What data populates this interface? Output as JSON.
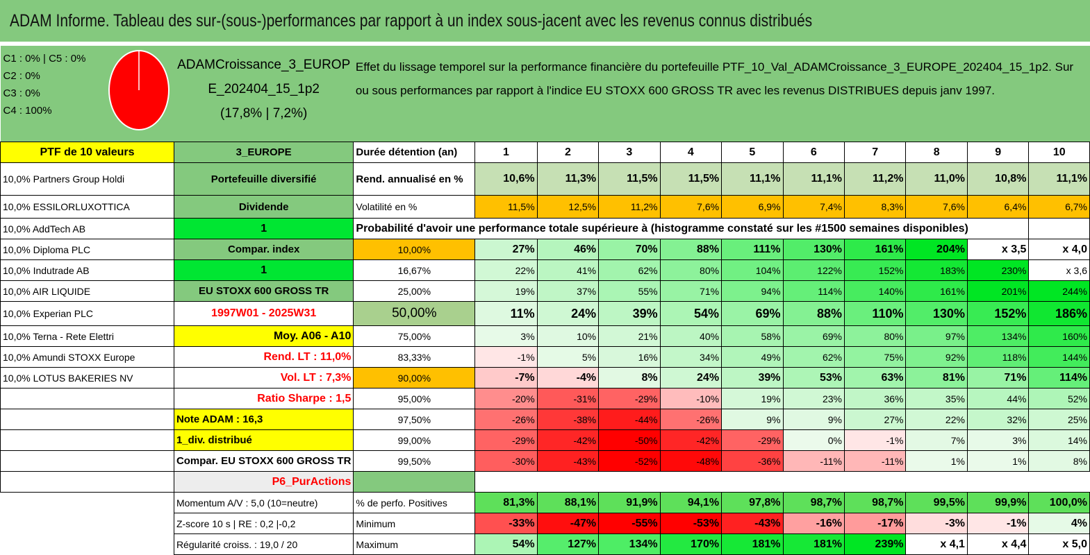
{
  "title": "ADAM Informe. Tableau des sur-(sous-)performances par rapport à un index sous-jacent avec les revenus connus distribués",
  "composition": [
    "C1 : 0% | C5 : 0%",
    "C2 : 0%",
    "C3 : 0%",
    "C4 : 100%"
  ],
  "pie_share": {
    "C4": 100
  },
  "fund": {
    "name": "ADAMCroissance_3_EUROPE_202404_15_1p2",
    "stats": "(17,8% | 7,2%)"
  },
  "effect_text": "Effet du lissage temporel sur la performance financière du portefeuille PTF_10_Val_ADAMCroissance_3_EUROPE_202404_15_1p2. Sur ou sous performances par rapport à l'indice EU STOXX 600 GROSS TR avec les revenus DISTRIBUES depuis janv 1997.",
  "ptf_label": "PTF de 10 valeurs",
  "holdings": [
    "10,0% Partners Group Holdi",
    "10,0% ESSILORLUXOTTICA",
    "10,0% AddTech AB",
    "10,0% Diploma PLC",
    "10,0% Indutrade AB",
    "10,0% AIR LIQUIDE",
    "10,0% Experian PLC",
    "10,0% Terna - Rete Elettri",
    "10,0% Amundi STOXX Europe",
    "10,0% LOTUS BAKERIES NV"
  ],
  "side": {
    "region": "3_EUROPE",
    "type": "Portefeuille diversifié",
    "dividend": "Dividende",
    "one_a": "1",
    "compar": "Compar. index",
    "one_b": "1",
    "index": "EU STOXX 600 GROSS TR",
    "period": "1997W01 - 2025W31",
    "moy": "Moy. A06 - A10",
    "rend": "Rend. LT : 11,0%",
    "vol": "Vol. LT : 7,3%",
    "sharpe": "Ratio Sharpe : 1,5",
    "note": "Note ADAM : 16,3",
    "div": "1_div. distribué",
    "compar2": "Compar. EU STOXX 600 GROSS TR",
    "pur": "P6_PurActions",
    "momentum": "Momentum A/V : 5,0 (10=neutre)",
    "zscore": "Z-score 10 s | RE : 0,2 |-0,2",
    "regularite": "Régularité croiss. : 19,0 / 20"
  },
  "labels": {
    "duree": "Durée détention (an)",
    "rend": "Rend. annualisé en %",
    "vol": "Volatilité en %",
    "prob": "Probabilité d'avoir une performance totale supérieure à (histogramme constaté sur les #1500 semaines disponibles)",
    "pos": "% de perfo. Positives",
    "min": "Minimum",
    "max": "Maximum"
  },
  "years": [
    "1",
    "2",
    "3",
    "4",
    "5",
    "6",
    "7",
    "8",
    "9",
    "10"
  ],
  "rend": [
    "10,6%",
    "11,3%",
    "11,5%",
    "11,5%",
    "11,1%",
    "11,1%",
    "11,2%",
    "11,0%",
    "10,8%",
    "11,1%"
  ],
  "vol": [
    "11,5%",
    "12,5%",
    "11,2%",
    "7,6%",
    "6,9%",
    "7,4%",
    "8,3%",
    "7,6%",
    "6,4%",
    "6,7%"
  ],
  "quantiles": [
    {
      "q": "10,00%",
      "v": [
        "27%",
        "46%",
        "70%",
        "88%",
        "111%",
        "130%",
        "161%",
        "204%",
        "x 3,5",
        "x 4,0"
      ]
    },
    {
      "q": "16,67%",
      "v": [
        "22%",
        "41%",
        "62%",
        "80%",
        "104%",
        "122%",
        "152%",
        "183%",
        "230%",
        "x 3,6"
      ]
    },
    {
      "q": "25,00%",
      "v": [
        "19%",
        "37%",
        "55%",
        "71%",
        "94%",
        "114%",
        "140%",
        "161%",
        "201%",
        "244%"
      ]
    },
    {
      "q": "50,00%",
      "v": [
        "11%",
        "24%",
        "39%",
        "54%",
        "69%",
        "88%",
        "110%",
        "130%",
        "152%",
        "186%"
      ]
    },
    {
      "q": "75,00%",
      "v": [
        "3%",
        "10%",
        "21%",
        "40%",
        "58%",
        "69%",
        "80%",
        "97%",
        "134%",
        "160%"
      ]
    },
    {
      "q": "83,33%",
      "v": [
        "-1%",
        "5%",
        "16%",
        "34%",
        "49%",
        "62%",
        "75%",
        "92%",
        "118%",
        "144%"
      ]
    },
    {
      "q": "90,00%",
      "v": [
        "-7%",
        "-4%",
        "8%",
        "24%",
        "39%",
        "53%",
        "63%",
        "81%",
        "71%",
        "114%"
      ]
    },
    {
      "q": "95,00%",
      "v": [
        "-20%",
        "-31%",
        "-29%",
        "-10%",
        "19%",
        "23%",
        "36%",
        "35%",
        "44%",
        "52%"
      ]
    },
    {
      "q": "97,50%",
      "v": [
        "-26%",
        "-38%",
        "-44%",
        "-26%",
        "9%",
        "9%",
        "27%",
        "22%",
        "32%",
        "25%"
      ]
    },
    {
      "q": "99,00%",
      "v": [
        "-29%",
        "-42%",
        "-50%",
        "-42%",
        "-29%",
        "0%",
        "-1%",
        "7%",
        "3%",
        "14%"
      ]
    },
    {
      "q": "99,50%",
      "v": [
        "-30%",
        "-43%",
        "-52%",
        "-48%",
        "-36%",
        "-11%",
        "-11%",
        "1%",
        "1%",
        "8%"
      ]
    }
  ],
  "positives": [
    "81,3%",
    "88,1%",
    "91,9%",
    "94,1%",
    "97,8%",
    "98,7%",
    "98,7%",
    "99,5%",
    "99,9%",
    "100,0%"
  ],
  "minimum": [
    "-33%",
    "-47%",
    "-55%",
    "-53%",
    "-43%",
    "-16%",
    "-17%",
    "-3%",
    "-1%",
    "4%"
  ],
  "maximum": [
    "54%",
    "127%",
    "134%",
    "170%",
    "181%",
    "181%",
    "239%",
    "x 4,1",
    "x 4,4",
    "x 5,0"
  ],
  "colors": {
    "header_green": "#84c97e",
    "yellow": "#ffff00",
    "orange": "#ffc000",
    "bright_green": "#00e632",
    "red": "#ff0000"
  }
}
